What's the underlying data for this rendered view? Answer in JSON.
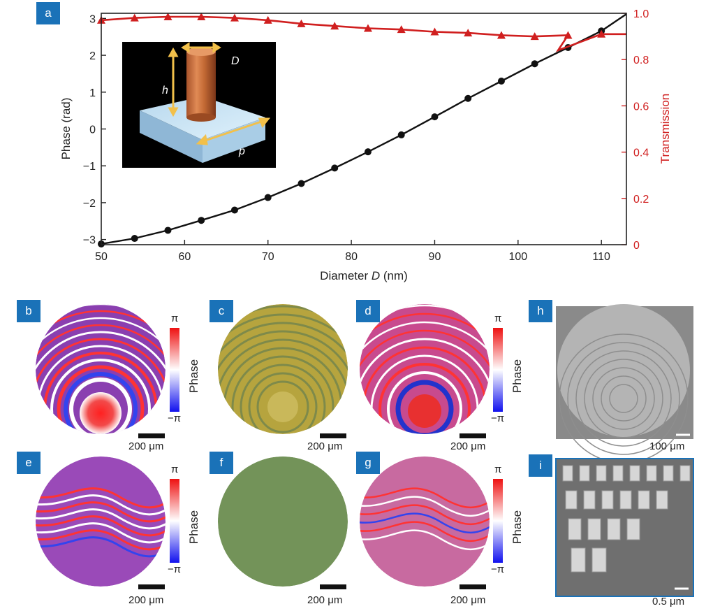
{
  "chart_data": {
    "type": "line",
    "panel_label": "a",
    "xlabel": "Diameter D (nm)",
    "xlabel_main": "Diameter ",
    "xlabel_var": "D",
    "xlabel_unit": " (nm)",
    "ylabel_left": "Phase (rad)",
    "ylabel_right": "Transmission",
    "xlim": [
      50,
      113
    ],
    "ylim_left": [
      -3.14,
      3.14
    ],
    "ylim_right": [
      0,
      1
    ],
    "xticks": [
      "50",
      "60",
      "70",
      "80",
      "90",
      "100",
      "110"
    ],
    "yticks_left": [
      "3",
      "2",
      "1",
      "0",
      "−1",
      "−2",
      "−3"
    ],
    "yticks_right": [
      "1.0",
      "0.8",
      "0.6",
      "0.4",
      "0.2",
      "0"
    ],
    "series": [
      {
        "name": "Phase",
        "axis": "left",
        "color": "#111111",
        "x": [
          50,
          54,
          58,
          62,
          66,
          70,
          74,
          78,
          82,
          86,
          90,
          94,
          98,
          102,
          106,
          110
        ],
        "y": [
          -3.12,
          -2.97,
          -2.75,
          -2.48,
          -2.2,
          -1.86,
          -1.48,
          -1.06,
          -0.62,
          -0.16,
          0.33,
          0.83,
          1.3,
          1.77,
          2.21,
          2.66
        ]
      },
      {
        "name": "Transmission",
        "axis": "right",
        "color": "#d01f1f",
        "x": [
          50,
          54,
          58,
          62,
          66,
          70,
          74,
          78,
          82,
          86,
          90,
          94,
          98,
          102,
          106,
          110
        ],
        "y": [
          0.97,
          0.98,
          0.985,
          0.985,
          0.98,
          0.97,
          0.955,
          0.945,
          0.935,
          0.93,
          0.92,
          0.915,
          0.905,
          0.9,
          0.905,
          0.91
        ]
      }
    ],
    "inset_labels": {
      "D": "D",
      "h": "h",
      "p": "p"
    }
  },
  "panels": [
    {
      "label": "b",
      "scale": "200 μm",
      "colorbar": true
    },
    {
      "label": "c",
      "scale": "200 μm",
      "colorbar": false
    },
    {
      "label": "d",
      "scale": "200 μm",
      "colorbar": true
    },
    {
      "label": "h",
      "scale": "100 μm",
      "colorbar": false
    },
    {
      "label": "e",
      "scale": "200 μm",
      "colorbar": true
    },
    {
      "label": "f",
      "scale": "200 μm",
      "colorbar": false
    },
    {
      "label": "g",
      "scale": "200 μm",
      "colorbar": true
    },
    {
      "label": "i",
      "scale": "0.5 μm",
      "colorbar": false
    }
  ],
  "colorbar": {
    "top": "π",
    "bottom": "−π",
    "title": "Phase"
  }
}
